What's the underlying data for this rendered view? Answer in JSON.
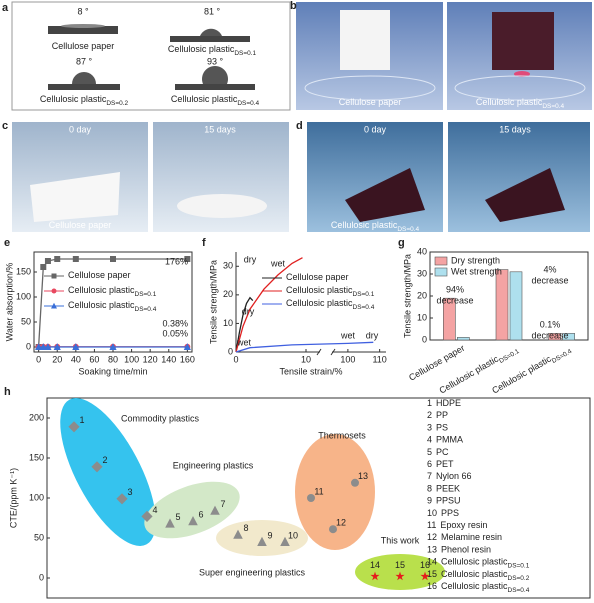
{
  "panel_a": {
    "label": "a",
    "samples": [
      {
        "angle": "8 °",
        "name": "Cellulose paper"
      },
      {
        "angle": "81 °",
        "name": "Cellulosic plastic",
        "sub": "DS=0.1"
      },
      {
        "angle": "87 °",
        "name": "Cellulosic plastic",
        "sub": "DS=0.2"
      },
      {
        "angle": "93 °",
        "name": "Cellulosic plastic",
        "sub": "DS=0.4"
      }
    ]
  },
  "panel_b": {
    "label": "b",
    "captions": [
      {
        "name": "Cellulose paper"
      },
      {
        "name": "Cellulosic plastic",
        "sub": "DS=0.4"
      }
    ]
  },
  "panel_c": {
    "label": "c",
    "times": [
      "0 day",
      "15 days"
    ],
    "caption": {
      "name": "Cellulose paper"
    }
  },
  "panel_d": {
    "label": "d",
    "times": [
      "0 day",
      "15 days"
    ],
    "caption": {
      "name": "Cellulosic plastic",
      "sub": "DS=0.4"
    }
  },
  "chart_data": [
    {
      "label": "e",
      "type": "line",
      "ylabel": "Water absorption/%",
      "xlabel": "Soaking time/min",
      "x": [
        0,
        5,
        10,
        20,
        40,
        80,
        160
      ],
      "xlim": [
        -5,
        165
      ],
      "xticks": [
        0,
        20,
        40,
        60,
        80,
        100,
        120,
        140,
        160
      ],
      "ylim": [
        -10,
        190
      ],
      "yticks": [
        0,
        50,
        100,
        150
      ],
      "series": [
        {
          "name": "Cellulose paper",
          "color": "#666666",
          "marker": "square",
          "values": [
            0,
            160,
            172,
            176,
            176,
            176,
            176
          ]
        },
        {
          "name": "Cellulosic plastic",
          "sub": "DS=0.1",
          "color": "#e8475f",
          "marker": "circle",
          "values": [
            0,
            0.38,
            0.38,
            0.38,
            0.38,
            0.38,
            0.38
          ]
        },
        {
          "name": "Cellulosic plastic",
          "sub": "DS=0.4",
          "color": "#3a6fd8",
          "marker": "triangle",
          "values": [
            0,
            0.05,
            0.05,
            0.05,
            0.05,
            0.05,
            0.05
          ]
        }
      ],
      "annotations": [
        {
          "text": "176%",
          "color": "#222222"
        },
        {
          "text": "0.38%",
          "color": "#e8283c"
        },
        {
          "text": "0.05%",
          "color": "#c020c0"
        }
      ]
    },
    {
      "label": "f",
      "type": "line",
      "ylabel": "Tensile strength/MPa",
      "xlabel": "Tensile strain/%",
      "xlim": [
        0,
        112
      ],
      "xbreak": [
        12,
        95
      ],
      "xticks": [
        0,
        10,
        100,
        110
      ],
      "ylim": [
        0,
        35
      ],
      "yticks": [
        0,
        10,
        20,
        30
      ],
      "series": [
        {
          "name": "Cellulose paper",
          "color": "#222222",
          "x": [
            0,
            0.5,
            1,
            1.5,
            2,
            2.4
          ],
          "values": [
            0,
            7,
            13,
            17,
            19,
            18
          ]
        },
        {
          "name": "Cellulosic plastic",
          "sub": "DS=0.1",
          "color": "#e02020",
          "x": [
            0,
            1,
            2,
            4,
            6,
            8,
            9.5
          ],
          "values": [
            0,
            9,
            15,
            22,
            27,
            31,
            33
          ]
        },
        {
          "name": "Cellulosic plastic",
          "sub": "DS=0.4",
          "color": "#4060e0",
          "x": [
            0,
            2,
            8,
            100,
            108
          ],
          "values": [
            0,
            1.5,
            2.5,
            3,
            3.4
          ]
        }
      ],
      "annotations": [
        {
          "text": "dry"
        },
        {
          "text": "wet"
        },
        {
          "text": "dry"
        },
        {
          "text": "wet"
        },
        {
          "text": "wet"
        },
        {
          "text": "dry"
        }
      ]
    },
    {
      "label": "g",
      "type": "bar",
      "ylabel": "Tensile strength/MPa",
      "categories": [
        "Cellulose paper",
        "Cellulosic plastic",
        "Cellulosic plastic"
      ],
      "category_subs": [
        null,
        "DS=0.1",
        "DS=0.4"
      ],
      "ylim": [
        0,
        40
      ],
      "yticks": [
        0,
        10,
        20,
        30,
        40
      ],
      "series": [
        {
          "name": "Dry strength",
          "color": "#f4a3a3",
          "values": [
            19,
            32,
            3
          ]
        },
        {
          "name": "Wet strength",
          "color": "#aee0ee",
          "values": [
            1.2,
            31,
            3
          ]
        }
      ],
      "annotations": [
        [
          "94%",
          "decrease"
        ],
        [
          "4%",
          "decrease"
        ],
        [
          "0.1%",
          "decrease"
        ]
      ]
    },
    {
      "label": "h",
      "type": "scatter",
      "ylabel": "CTE/(ppm K⁻¹)",
      "ylim": [
        -25,
        225
      ],
      "yticks": [
        0,
        50,
        100,
        150,
        200
      ],
      "labels": [
        "1",
        "2",
        "3",
        "4",
        "5",
        "6",
        "7",
        "8",
        "9",
        "10",
        "11",
        "12",
        "13",
        "14",
        "15",
        "16"
      ],
      "names": [
        "HDPE",
        "PP",
        "PS",
        "PMMA",
        "PC",
        "PET",
        "Nylon 66",
        "PEEK",
        "PPSU",
        "PPS",
        "Epoxy resin",
        "Melamine resin",
        "Phenol resin",
        "Cellulosic plastic",
        "Cellulosic plastic",
        "Cellulosic plastic"
      ],
      "name_subs": [
        null,
        null,
        null,
        null,
        null,
        null,
        null,
        null,
        null,
        null,
        null,
        null,
        null,
        "DS=0.1",
        "DS=0.2",
        "DS=0.4"
      ],
      "values": [
        189,
        139,
        99,
        77,
        68,
        71,
        84,
        54,
        45,
        45,
        100,
        61,
        119,
        2,
        2,
        2
      ],
      "markers": [
        "diamond",
        "diamond",
        "diamond",
        "diamond",
        "triangle",
        "triangle",
        "triangle",
        "triangle",
        "triangle",
        "triangle",
        "circle",
        "circle",
        "circle",
        "star",
        "star",
        "star"
      ],
      "colors": [
        "#8c8c8c",
        "#8c8c8c",
        "#8c8c8c",
        "#8c8c8c",
        "#8c8c8c",
        "#8c8c8c",
        "#8c8c8c",
        "#8c8c8c",
        "#8c8c8c",
        "#8c8c8c",
        "#8c8c8c",
        "#8c8c8c",
        "#8c8c8c",
        "#e51c1c",
        "#e51c1c",
        "#e51c1c"
      ],
      "groups": [
        "Commodity plastics",
        "Engineering plastics",
        "Thermosets",
        "Super engineering plastics",
        "This work"
      ]
    }
  ]
}
